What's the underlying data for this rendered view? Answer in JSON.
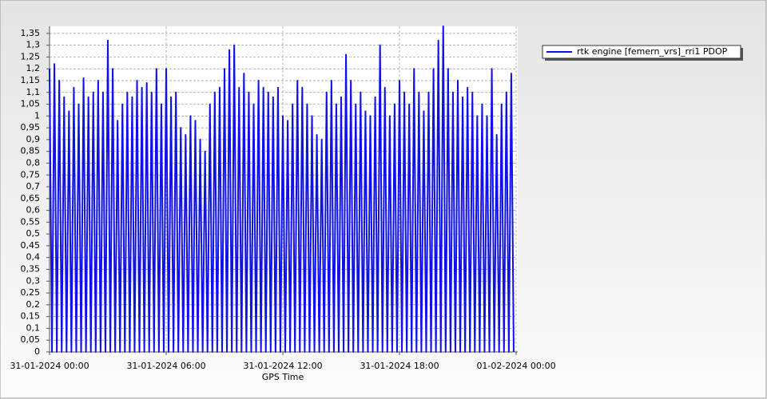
{
  "chart_data": {
    "type": "line",
    "x_label": "GPS Time",
    "xlim": [
      0,
      24
    ],
    "xticks": [
      {
        "value": 0,
        "label": "31-01-2024 00:00"
      },
      {
        "value": 6,
        "label": "31-01-2024 06:00"
      },
      {
        "value": 12,
        "label": "31-01-2024 12:00"
      },
      {
        "value": 18,
        "label": "31-01-2024 18:00"
      },
      {
        "value": 24,
        "label": "01-02-2024 00:00"
      }
    ],
    "ylim": [
      0,
      1.38
    ],
    "yticks": [
      0,
      {
        "value": 0.05,
        "label": "0,05"
      },
      {
        "value": 0.1,
        "label": "0,1"
      },
      {
        "value": 0.15,
        "label": "0,15"
      },
      {
        "value": 0.2,
        "label": "0,2"
      },
      {
        "value": 0.25,
        "label": "0,25"
      },
      {
        "value": 0.3,
        "label": "0,3"
      },
      {
        "value": 0.35,
        "label": "0,35"
      },
      {
        "value": 0.4,
        "label": "0,4"
      },
      {
        "value": 0.45,
        "label": "0,45"
      },
      {
        "value": 0.5,
        "label": "0,5"
      },
      {
        "value": 0.55,
        "label": "0,55"
      },
      {
        "value": 0.6,
        "label": "0,6"
      },
      {
        "value": 0.65,
        "label": "0,65"
      },
      {
        "value": 0.7,
        "label": "0,7"
      },
      {
        "value": 0.75,
        "label": "0,75"
      },
      {
        "value": 0.8,
        "label": "0,8"
      },
      {
        "value": 0.85,
        "label": "0,85"
      },
      {
        "value": 0.9,
        "label": "0,9"
      },
      {
        "value": 0.95,
        "label": "0,95"
      },
      1,
      {
        "value": 1.05,
        "label": "1,05"
      },
      {
        "value": 1.1,
        "label": "1,1"
      },
      {
        "value": 1.15,
        "label": "1,15"
      },
      {
        "value": 1.2,
        "label": "1,2"
      },
      {
        "value": 1.25,
        "label": "1,25"
      },
      {
        "value": 1.3,
        "label": "1,3"
      },
      {
        "value": 1.35,
        "label": "1,35"
      }
    ],
    "grid": true,
    "legend": "top-right",
    "x": [
      0,
      0.125,
      0.25,
      0.375,
      0.5,
      0.625,
      0.75,
      0.875,
      1,
      1.125,
      1.25,
      1.375,
      1.5,
      1.625,
      1.75,
      1.875,
      2,
      2.125,
      2.25,
      2.375,
      2.5,
      2.625,
      2.75,
      2.875,
      3,
      3.125,
      3.25,
      3.375,
      3.5,
      3.625,
      3.75,
      3.875,
      4,
      4.125,
      4.25,
      4.375,
      4.5,
      4.625,
      4.75,
      4.875,
      5,
      5.125,
      5.25,
      5.375,
      5.5,
      5.625,
      5.75,
      5.875,
      6,
      6.125,
      6.25,
      6.375,
      6.5,
      6.625,
      6.75,
      6.875,
      7,
      7.125,
      7.25,
      7.375,
      7.5,
      7.625,
      7.75,
      7.875,
      8,
      8.125,
      8.25,
      8.375,
      8.5,
      8.625,
      8.75,
      8.875,
      9,
      9.125,
      9.25,
      9.375,
      9.5,
      9.625,
      9.75,
      9.875,
      10,
      10.125,
      10.25,
      10.375,
      10.5,
      10.625,
      10.75,
      10.875,
      11,
      11.125,
      11.25,
      11.375,
      11.5,
      11.625,
      11.75,
      11.875,
      12,
      12.125,
      12.25,
      12.375,
      12.5,
      12.625,
      12.75,
      12.875,
      13,
      13.125,
      13.25,
      13.375,
      13.5,
      13.625,
      13.75,
      13.875,
      14,
      14.125,
      14.25,
      14.375,
      14.5,
      14.625,
      14.75,
      14.875,
      15,
      15.125,
      15.25,
      15.375,
      15.5,
      15.625,
      15.75,
      15.875,
      16,
      16.125,
      16.25,
      16.375,
      16.5,
      16.625,
      16.75,
      16.875,
      17,
      17.125,
      17.25,
      17.375,
      17.5,
      17.625,
      17.75,
      17.875,
      18,
      18.125,
      18.25,
      18.375,
      18.5,
      18.625,
      18.75,
      18.875,
      19,
      19.125,
      19.25,
      19.375,
      19.5,
      19.625,
      19.75,
      19.875,
      20,
      20.125,
      20.25,
      20.375,
      20.5,
      20.625,
      20.75,
      20.875,
      21,
      21.125,
      21.25,
      21.375,
      21.5,
      21.625,
      21.75,
      21.875,
      22,
      22.125,
      22.25,
      22.375,
      22.5,
      22.625,
      22.75,
      22.875,
      23,
      23.125,
      23.25,
      23.375,
      23.5,
      23.625,
      23.75,
      23.875
    ],
    "series": [
      {
        "name": "rtk engine [femern_vrs]_rri1 PDOP",
        "color": "#1010e8",
        "values": [
          1.2,
          0,
          1.22,
          0,
          1.15,
          0,
          1.08,
          0,
          1.02,
          0,
          1.12,
          0,
          1.05,
          0,
          1.16,
          0,
          1.08,
          0,
          1.1,
          0,
          1.15,
          0,
          1.1,
          0,
          1.32,
          0,
          1.2,
          0,
          0.98,
          0,
          1.05,
          0,
          1.1,
          0,
          1.08,
          0,
          1.15,
          0,
          1.12,
          0,
          1.14,
          0,
          1.1,
          0,
          1.2,
          0,
          1.05,
          0,
          1.2,
          0,
          1.08,
          0,
          1.1,
          0,
          0.95,
          0,
          0.92,
          0,
          1.0,
          0,
          0.98,
          0,
          0.9,
          0,
          0.85,
          0,
          1.05,
          0,
          1.1,
          0,
          1.12,
          0,
          1.2,
          0,
          1.28,
          0,
          1.3,
          0,
          1.12,
          0,
          1.18,
          0,
          1.1,
          0,
          1.05,
          0,
          1.15,
          0,
          1.12,
          0,
          1.1,
          0,
          1.08,
          0,
          1.12,
          0,
          1.0,
          0,
          0.98,
          0,
          1.05,
          0,
          1.15,
          0,
          1.12,
          0,
          1.05,
          0,
          1.0,
          0,
          0.92,
          0,
          0.9,
          0,
          1.1,
          0,
          1.15,
          0,
          1.05,
          0,
          1.08,
          0,
          1.26,
          0,
          1.15,
          0,
          1.05,
          0,
          1.1,
          0,
          1.02,
          0,
          1.0,
          0,
          1.08,
          0,
          1.3,
          0,
          1.12,
          0,
          1.0,
          0,
          1.05,
          0,
          1.15,
          0,
          1.1,
          0,
          1.05,
          0,
          1.2,
          0,
          1.1,
          0,
          1.02,
          0,
          1.1,
          0,
          1.2,
          0,
          1.32,
          0,
          1.38,
          0,
          1.2,
          0,
          1.1,
          0,
          1.15,
          0,
          1.08,
          0,
          1.12,
          0,
          1.1,
          0,
          1.0,
          0,
          1.05,
          0,
          1.0,
          0,
          1.2,
          0,
          0.92,
          0,
          1.05,
          0,
          1.1,
          0,
          1.18,
          0
        ]
      }
    ]
  }
}
